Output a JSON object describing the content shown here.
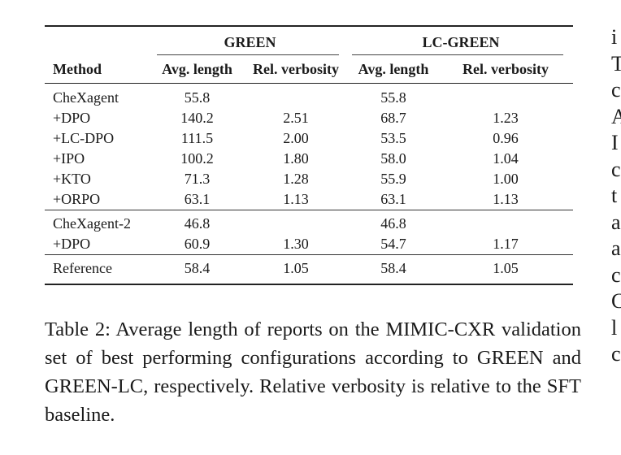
{
  "table": {
    "groups": [
      "GREEN",
      "LC-GREEN"
    ],
    "columns": [
      "Method",
      "Avg. length",
      "Rel. verbosity",
      "Avg. length",
      "Rel. verbosity"
    ],
    "blocks": [
      [
        {
          "method": "CheXagent",
          "green_len": "55.8",
          "green_rel": "",
          "lc_len": "55.8",
          "lc_rel": ""
        },
        {
          "method": "+DPO",
          "green_len": "140.2",
          "green_rel": "2.51",
          "lc_len": "68.7",
          "lc_rel": "1.23"
        },
        {
          "method": "+LC-DPO",
          "green_len": "111.5",
          "green_rel": "2.00",
          "lc_len": "53.5",
          "lc_rel": "0.96"
        },
        {
          "method": "+IPO",
          "green_len": "100.2",
          "green_rel": "1.80",
          "lc_len": "58.0",
          "lc_rel": "1.04"
        },
        {
          "method": "+KTO",
          "green_len": "71.3",
          "green_rel": "1.28",
          "lc_len": "55.9",
          "lc_rel": "1.00"
        },
        {
          "method": "+ORPO",
          "green_len": "63.1",
          "green_rel": "1.13",
          "lc_len": "63.1",
          "lc_rel": "1.13"
        }
      ],
      [
        {
          "method": "CheXagent-2",
          "green_len": "46.8",
          "green_rel": "",
          "lc_len": "46.8",
          "lc_rel": ""
        },
        {
          "method": "+DPO",
          "green_len": "60.9",
          "green_rel": "1.30",
          "lc_len": "54.7",
          "lc_rel": "1.17"
        }
      ],
      [
        {
          "method": "Reference",
          "green_len": "58.4",
          "green_rel": "1.05",
          "lc_len": "58.4",
          "lc_rel": "1.05"
        }
      ]
    ]
  },
  "caption": {
    "label": "Table 2:",
    "text": "Average length of reports on the MIMIC-CXR validation set of best performing configurations according to GREEN and GREEN-LC, respectively. Relative verbosity is relative to the SFT baseline."
  },
  "margin_letters": [
    "i",
    "T",
    "c",
    "A",
    "I",
    "c",
    "t",
    "a",
    "a",
    "c",
    "C",
    "l",
    "c"
  ]
}
